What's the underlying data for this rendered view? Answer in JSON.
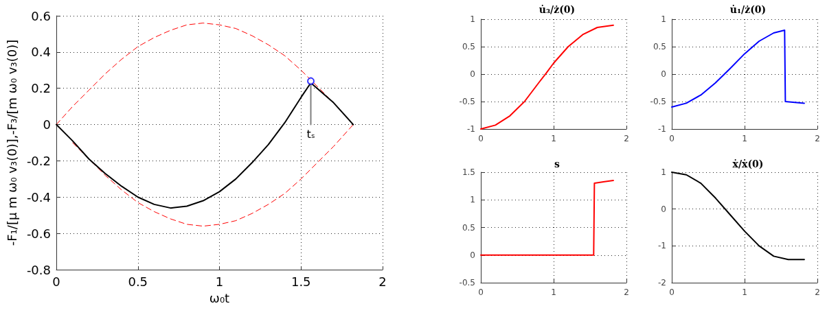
{
  "chart_data": [
    {
      "type": "line",
      "xlabel": "ω₀t",
      "ylabel": "-F₁/[μ m ω₀ v₃(0)],-F₃/[m ω₀ v₃(0)]",
      "xlim": [
        0,
        2
      ],
      "xticks": [
        0,
        0.5,
        1,
        1.5,
        2
      ],
      "ylim": [
        -0.8,
        0.6
      ],
      "yticks": [
        -0.8,
        -0.6,
        -0.4,
        -0.2,
        0,
        0.2,
        0.4,
        0.6
      ],
      "grid": true,
      "annotations": [
        {
          "text": "tₛ",
          "x": 1.56,
          "y": 0
        }
      ],
      "series": [
        {
          "color": "#ff0000",
          "line_style": "dashed",
          "x": [
            0,
            0.1,
            0.2,
            0.3,
            0.4,
            0.5,
            0.6,
            0.7,
            0.8,
            0.9,
            1.0,
            1.1,
            1.2,
            1.3,
            1.4,
            1.5,
            1.6,
            1.7,
            1.82
          ],
          "values": [
            0,
            0.1,
            0.19,
            0.28,
            0.36,
            0.43,
            0.48,
            0.52,
            0.55,
            0.56,
            0.55,
            0.53,
            0.49,
            0.44,
            0.38,
            0.3,
            0.21,
            0.12,
            0
          ]
        },
        {
          "color": "#ff0000",
          "line_style": "dashed",
          "x": [
            0.1,
            0.2,
            0.3,
            0.4,
            0.5,
            0.6,
            0.7,
            0.8,
            0.9,
            1.0,
            1.1,
            1.2,
            1.3,
            1.4,
            1.5,
            1.6,
            1.7,
            1.82
          ],
          "values": [
            -0.1,
            -0.19,
            -0.28,
            -0.36,
            -0.43,
            -0.48,
            -0.52,
            -0.55,
            -0.56,
            -0.55,
            -0.53,
            -0.49,
            -0.44,
            -0.38,
            -0.3,
            -0.21,
            -0.12,
            0
          ]
        },
        {
          "color": "#000000",
          "line_style": "solid",
          "x": [
            0,
            0.1,
            0.2,
            0.3,
            0.4,
            0.5,
            0.6,
            0.7,
            0.8,
            0.9,
            1.0,
            1.1,
            1.2,
            1.3,
            1.4,
            1.5,
            1.56,
            1.7,
            1.82
          ],
          "values": [
            0,
            -0.09,
            -0.19,
            -0.27,
            -0.34,
            -0.4,
            -0.44,
            -0.46,
            -0.45,
            -0.42,
            -0.37,
            -0.3,
            -0.21,
            -0.11,
            0.01,
            0.15,
            0.23,
            0.12,
            0
          ]
        },
        {
          "color": "#808080",
          "line_style": "solid",
          "x": [
            1.56,
            1.56
          ],
          "values": [
            0,
            0.23
          ]
        },
        {
          "type": "scatter",
          "color": "#0000ff",
          "marker": "circle",
          "x": [
            1.56
          ],
          "values": [
            0.24
          ]
        }
      ]
    },
    {
      "type": "line",
      "title": "u̇₃/ż(0)",
      "xlim": [
        0,
        2
      ],
      "xticks": [
        0,
        1,
        2
      ],
      "ylim": [
        -1,
        1
      ],
      "yticks": [
        -1,
        -0.5,
        0,
        0.5,
        1
      ],
      "grid": true,
      "series": [
        {
          "color": "#ff0000",
          "x": [
            0,
            0.2,
            0.4,
            0.6,
            0.8,
            0.9,
            1.0,
            1.2,
            1.4,
            1.6,
            1.82
          ],
          "values": [
            -1,
            -0.93,
            -0.76,
            -0.5,
            -0.15,
            0.02,
            0.2,
            0.5,
            0.72,
            0.85,
            0.89
          ]
        }
      ]
    },
    {
      "type": "line",
      "title": "u̇₁/ż(0)",
      "xlim": [
        0,
        2
      ],
      "xticks": [
        0,
        1,
        2
      ],
      "ylim": [
        -1,
        1
      ],
      "yticks": [
        -1,
        -0.5,
        0,
        0.5,
        1
      ],
      "grid": true,
      "series": [
        {
          "color": "#0000ff",
          "x": [
            0,
            0.2,
            0.4,
            0.6,
            0.8,
            1.0,
            1.2,
            1.4,
            1.55,
            1.56,
            1.82
          ],
          "values": [
            -0.6,
            -0.53,
            -0.38,
            -0.16,
            0.1,
            0.37,
            0.6,
            0.75,
            0.8,
            -0.5,
            -0.53
          ]
        }
      ]
    },
    {
      "type": "line",
      "title": "s",
      "xlim": [
        0,
        2
      ],
      "xticks": [
        0,
        1,
        2
      ],
      "ylim": [
        -0.5,
        1.5
      ],
      "yticks": [
        -0.5,
        0,
        0.5,
        1,
        1.5
      ],
      "grid": true,
      "series": [
        {
          "color": "#ff0000",
          "x": [
            0,
            1.55,
            1.56,
            1.7,
            1.82
          ],
          "values": [
            0,
            0,
            1.3,
            1.33,
            1.35
          ]
        }
      ]
    },
    {
      "type": "line",
      "title": "ẋ/ẋ(0)",
      "xlim": [
        0,
        2
      ],
      "xticks": [
        0,
        1,
        2
      ],
      "ylim": [
        -2,
        1
      ],
      "yticks": [
        -2,
        -1,
        0,
        1
      ],
      "grid": true,
      "series": [
        {
          "color": "#000000",
          "x": [
            0,
            0.2,
            0.4,
            0.6,
            0.8,
            1.0,
            1.2,
            1.4,
            1.6,
            1.82
          ],
          "values": [
            1,
            0.93,
            0.7,
            0.3,
            -0.15,
            -0.6,
            -1.0,
            -1.28,
            -1.37,
            -1.37
          ]
        }
      ]
    }
  ]
}
